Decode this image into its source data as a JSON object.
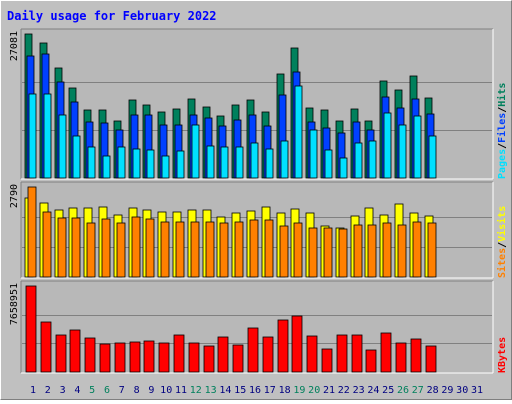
{
  "chart_data": {
    "type": "bar",
    "title": "Daily usage for February 2022",
    "days": [
      "1",
      "2",
      "3",
      "4",
      "5",
      "6",
      "7",
      "8",
      "9",
      "10",
      "11",
      "12",
      "13",
      "14",
      "15",
      "16",
      "17",
      "18",
      "19",
      "20",
      "21",
      "22",
      "23",
      "24",
      "25",
      "26",
      "27",
      "28",
      "29",
      "30",
      "31"
    ],
    "weekend_days": [
      "5",
      "6",
      "12",
      "13",
      "19",
      "20",
      "26",
      "27"
    ],
    "colors": {
      "title": "#0000ff",
      "background": "#c0c0c0",
      "plot_bg": "#b8b8b8",
      "hits": "#00805c",
      "files": "#0040ff",
      "pages": "#00e0ff",
      "visits": "#ffff00",
      "sites": "#ff8000",
      "kbytes": "#ff0000",
      "weekend_label": "#00805c",
      "weekday_label": "#000080"
    },
    "panels": [
      {
        "max_label": "27081",
        "ylim": [
          0,
          27081
        ],
        "legend": [
          "Pages",
          "Files",
          "Hits"
        ],
        "series": [
          {
            "name": "Hits",
            "values": [
              27081,
              25400,
              20700,
              16900,
              12750,
              12750,
              10650,
              14650,
              13700,
              12400,
              13000,
              14900,
              13400,
              11750,
              13700,
              14650,
              12400,
              19500,
              24500,
              13200,
              12750,
              10650,
              13000,
              10650,
              18200,
              16550,
              19100,
              15000,
              0,
              0,
              0
            ]
          },
          {
            "name": "Files",
            "values": [
              22850,
              23300,
              18000,
              14200,
              10600,
              10350,
              9100,
              11900,
              11800,
              10050,
              10050,
              11900,
              11250,
              9800,
              11000,
              11900,
              9800,
              15550,
              20000,
              10600,
              9350,
              8450,
              10600,
              9100,
              15300,
              13200,
              14900,
              12100,
              0,
              0,
              0
            ]
          },
          {
            "name": "Pages",
            "values": [
              15850,
              15850,
              11900,
              7950,
              5800,
              4200,
              5800,
              5400,
              5200,
              4200,
              5000,
              10050,
              6050,
              5800,
              5800,
              6600,
              5400,
              6900,
              17300,
              9100,
              5200,
              3800,
              6600,
              6900,
              12300,
              9950,
              11700,
              7950,
              0,
              0,
              0
            ]
          }
        ]
      },
      {
        "max_label": "2790",
        "ylim": [
          0,
          2790
        ],
        "legend": [
          "Sites",
          "Visits"
        ],
        "series": [
          {
            "name": "Visits",
            "values": [
              2460,
              2280,
              2080,
              2130,
              2130,
              2170,
              1920,
              2130,
              2080,
              2010,
              2010,
              2080,
              2080,
              1850,
              1990,
              2050,
              2170,
              1990,
              2100,
              1970,
              1570,
              1520,
              1890,
              2130,
              1910,
              2250,
              1970,
              1890,
              0,
              0,
              0
            ]
          },
          {
            "name": "Sites",
            "values": [
              2790,
              2030,
              1830,
              1820,
              1670,
              1790,
              1660,
              1860,
              1790,
              1700,
              1720,
              1720,
              1720,
              1660,
              1720,
              1760,
              1760,
              1570,
              1670,
              1520,
              1520,
              1480,
              1620,
              1620,
              1670,
              1620,
              1720,
              1670,
              0,
              0,
              0
            ]
          }
        ]
      },
      {
        "max_label": "7658951",
        "ylim": [
          0,
          7658951
        ],
        "legend": [
          "KBytes"
        ],
        "series": [
          {
            "name": "KBytes",
            "values": [
              7658951,
              4458000,
              3266000,
              3696000,
              3001000,
              2503000,
              2563000,
              2683000,
              2763000,
              2623000,
              3266000,
              2623000,
              2306000,
              3086000,
              2403000,
              3876000,
              3156000,
              4636000,
              5008000,
              3186000,
              2053000,
              3266000,
              3306000,
              1970000,
              3466000,
              2563000,
              2983000,
              2306000,
              0,
              0,
              0
            ]
          }
        ]
      }
    ]
  }
}
